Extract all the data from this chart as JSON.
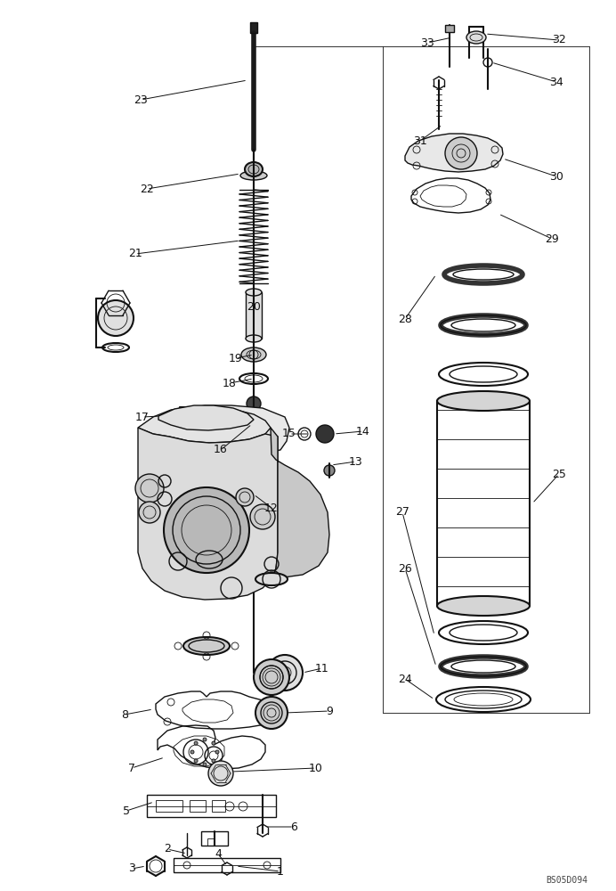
{
  "bg_color": "#ffffff",
  "line_color": "#111111",
  "label_color": "#111111",
  "watermark": "BS05D094",
  "fig_w": 6.92,
  "fig_h": 10.0,
  "dpi": 100,
  "xlim": [
    0,
    692
  ],
  "ylim": [
    0,
    1000
  ]
}
